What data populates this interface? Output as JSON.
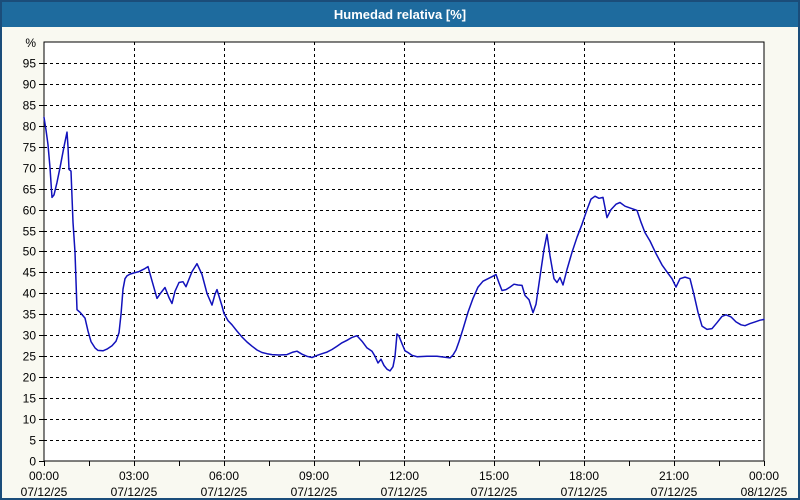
{
  "window": {
    "title": "Humedad relativa [%]",
    "colors": {
      "titlebar_bg": "#1e6b9e",
      "titlebar_text": "#ffffff",
      "window_bg": "#f9f9f1",
      "window_border": "#1b4d7a",
      "plot_bg": "#ffffff",
      "plot_border": "#000000",
      "grid": "#000000",
      "tick_text": "#000000",
      "line": "#1212bc"
    }
  },
  "chart_data": {
    "type": "line",
    "title": "Humedad relativa [%]",
    "ylabel": "%",
    "ylim": [
      0,
      100
    ],
    "yticks": [
      0,
      5,
      10,
      15,
      20,
      25,
      30,
      35,
      40,
      45,
      50,
      55,
      60,
      65,
      70,
      75,
      80,
      85,
      90,
      95
    ],
    "grid": "dashed",
    "legend": "none",
    "x_span_hours": 24,
    "x_gridline_hours": [
      3,
      6,
      9,
      12,
      15,
      18,
      21
    ],
    "x_minor_tick_interval_hours": 1.5,
    "x_labels": [
      {
        "time": "00:00",
        "date": "07/12/25"
      },
      {
        "time": "03:00",
        "date": "07/12/25"
      },
      {
        "time": "06:00",
        "date": "07/12/25"
      },
      {
        "time": "09:00",
        "date": "07/12/25"
      },
      {
        "time": "12:00",
        "date": "07/12/25"
      },
      {
        "time": "15:00",
        "date": "07/12/25"
      },
      {
        "time": "18:00",
        "date": "07/12/25"
      },
      {
        "time": "21:00",
        "date": "07/12/25"
      },
      {
        "time": "00:00",
        "date": "08/12/25"
      }
    ],
    "series": [
      {
        "name": "Humedad relativa",
        "color": "#1212bc",
        "points_min_pct": [
          [
            0,
            82
          ],
          [
            4,
            79
          ],
          [
            8,
            75.5
          ],
          [
            12,
            70
          ],
          [
            16,
            62.9
          ],
          [
            20,
            63.5
          ],
          [
            26,
            66.5
          ],
          [
            32,
            70
          ],
          [
            40,
            75
          ],
          [
            46,
            78.5
          ],
          [
            48,
            75
          ],
          [
            50,
            69.6
          ],
          [
            54,
            69.2
          ],
          [
            58,
            57
          ],
          [
            62,
            49.8
          ],
          [
            66,
            36.1
          ],
          [
            72,
            35.5
          ],
          [
            82,
            34.1
          ],
          [
            88,
            31
          ],
          [
            94,
            28.5
          ],
          [
            102,
            27
          ],
          [
            108,
            26.4
          ],
          [
            118,
            26.3
          ],
          [
            126,
            26.7
          ],
          [
            136,
            27.5
          ],
          [
            144,
            28.6
          ],
          [
            150,
            30.6
          ],
          [
            154,
            35
          ],
          [
            158,
            41
          ],
          [
            162,
            43.5
          ],
          [
            166,
            44.2
          ],
          [
            172,
            44.6
          ],
          [
            180,
            44.9
          ],
          [
            190,
            45.2
          ],
          [
            200,
            45.8
          ],
          [
            208,
            46.4
          ],
          [
            216,
            43
          ],
          [
            226,
            38.8
          ],
          [
            234,
            40.2
          ],
          [
            242,
            41.4
          ],
          [
            250,
            39
          ],
          [
            256,
            37.6
          ],
          [
            262,
            40.5
          ],
          [
            270,
            42.6
          ],
          [
            278,
            42.8
          ],
          [
            284,
            41.6
          ],
          [
            296,
            45.2
          ],
          [
            306,
            47.1
          ],
          [
            316,
            44.5
          ],
          [
            326,
            40
          ],
          [
            332,
            38.3
          ],
          [
            336,
            37.2
          ],
          [
            342,
            39.8
          ],
          [
            346,
            40.9
          ],
          [
            356,
            37
          ],
          [
            360,
            35.2
          ],
          [
            368,
            33.5
          ],
          [
            376,
            32.5
          ],
          [
            386,
            31
          ],
          [
            396,
            29.6
          ],
          [
            406,
            28.4
          ],
          [
            416,
            27.4
          ],
          [
            426,
            26.5
          ],
          [
            436,
            25.9
          ],
          [
            446,
            25.6
          ],
          [
            456,
            25.4
          ],
          [
            470,
            25.3
          ],
          [
            486,
            25.4
          ],
          [
            498,
            26
          ],
          [
            506,
            26.2
          ],
          [
            516,
            25.5
          ],
          [
            526,
            25
          ],
          [
            536,
            24.7
          ],
          [
            546,
            25.2
          ],
          [
            556,
            25.6
          ],
          [
            566,
            26
          ],
          [
            576,
            26.6
          ],
          [
            586,
            27.4
          ],
          [
            596,
            28.2
          ],
          [
            606,
            28.8
          ],
          [
            616,
            29.5
          ],
          [
            626,
            29.9
          ],
          [
            636,
            28.6
          ],
          [
            646,
            27
          ],
          [
            656,
            26.2
          ],
          [
            662,
            25
          ],
          [
            668,
            23.4
          ],
          [
            674,
            24.3
          ],
          [
            680,
            22.8
          ],
          [
            686,
            21.9
          ],
          [
            692,
            21.5
          ],
          [
            698,
            22.5
          ],
          [
            702,
            25
          ],
          [
            706,
            30.3
          ],
          [
            710,
            29.8
          ],
          [
            716,
            28
          ],
          [
            722,
            26.3
          ],
          [
            728,
            25.9
          ],
          [
            736,
            25.2
          ],
          [
            746,
            24.9
          ],
          [
            766,
            25
          ],
          [
            786,
            25
          ],
          [
            806,
            24.7
          ],
          [
            812,
            24.6
          ],
          [
            818,
            25.3
          ],
          [
            824,
            26.5
          ],
          [
            830,
            28.5
          ],
          [
            838,
            31.5
          ],
          [
            848,
            35.5
          ],
          [
            858,
            38.8
          ],
          [
            868,
            41.5
          ],
          [
            878,
            42.9
          ],
          [
            888,
            43.5
          ],
          [
            898,
            44.1
          ],
          [
            904,
            44.5
          ],
          [
            910,
            42.5
          ],
          [
            916,
            40.7
          ],
          [
            924,
            40.9
          ],
          [
            932,
            41.5
          ],
          [
            940,
            42.2
          ],
          [
            948,
            42
          ],
          [
            956,
            41.9
          ],
          [
            962,
            39.5
          ],
          [
            970,
            38.5
          ],
          [
            978,
            35.4
          ],
          [
            984,
            37.4
          ],
          [
            992,
            44
          ],
          [
            1000,
            50.5
          ],
          [
            1006,
            54.1
          ],
          [
            1012,
            49
          ],
          [
            1020,
            43.5
          ],
          [
            1026,
            42.6
          ],
          [
            1032,
            43.8
          ],
          [
            1038,
            42
          ],
          [
            1046,
            45.7
          ],
          [
            1056,
            49.8
          ],
          [
            1066,
            53.4
          ],
          [
            1076,
            56.5
          ],
          [
            1086,
            60
          ],
          [
            1094,
            62.5
          ],
          [
            1102,
            63.2
          ],
          [
            1110,
            62.7
          ],
          [
            1118,
            62.9
          ],
          [
            1126,
            58.1
          ],
          [
            1134,
            60
          ],
          [
            1144,
            61.3
          ],
          [
            1152,
            61.7
          ],
          [
            1162,
            60.8
          ],
          [
            1174,
            60.3
          ],
          [
            1186,
            59.8
          ],
          [
            1194,
            57
          ],
          [
            1202,
            54.5
          ],
          [
            1212,
            52.5
          ],
          [
            1224,
            49.5
          ],
          [
            1236,
            46.8
          ],
          [
            1248,
            44.8
          ],
          [
            1256,
            43.5
          ],
          [
            1264,
            41.5
          ],
          [
            1272,
            43.5
          ],
          [
            1282,
            43.9
          ],
          [
            1292,
            43.5
          ],
          [
            1300,
            39.7
          ],
          [
            1308,
            35.5
          ],
          [
            1316,
            32.2
          ],
          [
            1326,
            31.4
          ],
          [
            1336,
            31.6
          ],
          [
            1346,
            33
          ],
          [
            1356,
            34.5
          ],
          [
            1364,
            34.9
          ],
          [
            1374,
            34.4
          ],
          [
            1384,
            33.2
          ],
          [
            1394,
            32.5
          ],
          [
            1402,
            32.3
          ],
          [
            1412,
            32.8
          ],
          [
            1422,
            33.2
          ],
          [
            1432,
            33.6
          ],
          [
            1440,
            33.8
          ]
        ]
      }
    ]
  }
}
